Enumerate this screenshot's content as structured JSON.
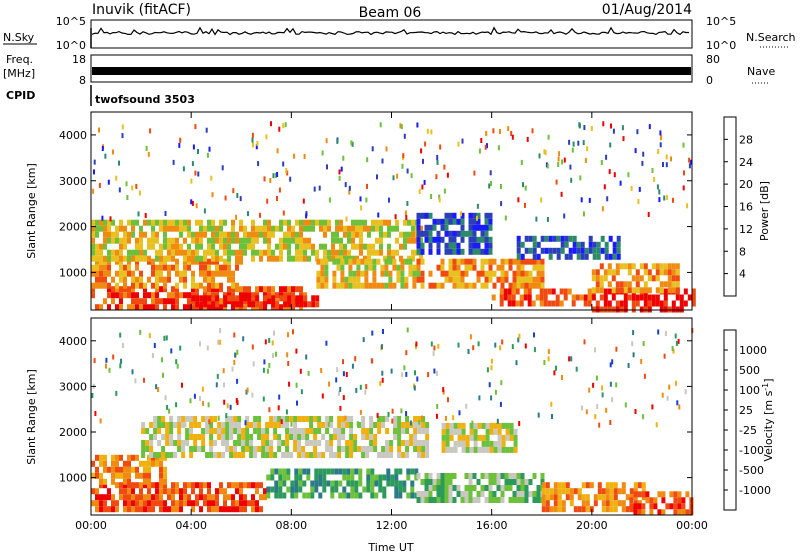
{
  "header": {
    "title": "Inuvik (fitACF)",
    "beam": "Beam 06",
    "date": "01/Aug/2014"
  },
  "noise_panel": {
    "left_label": "N.Sky",
    "left_ticks": [
      "10^5",
      "10^0"
    ],
    "right_ticks": [
      "10^5",
      "10^0"
    ],
    "right_label": "N.Search"
  },
  "freq_panel": {
    "left_label_1": "Freq.",
    "left_label_2": "[MHz]",
    "left_ticks": [
      "18",
      "8"
    ],
    "right_ticks": [
      "80",
      "0"
    ],
    "right_label": "Nave"
  },
  "cpid": {
    "label": "CPID",
    "value": "twofsound 3503"
  },
  "chart_data": [
    {
      "type": "heatmap",
      "name": "power",
      "ylabel": "Slant Range [km]",
      "yticks": [
        "1000",
        "2000",
        "3000",
        "4000"
      ],
      "ylim": [
        180,
        4500
      ],
      "xlim": [
        0,
        24
      ],
      "colorbar": {
        "label": "Power [dB]",
        "ticks": [
          "4",
          "8",
          "12",
          "16",
          "20",
          "24",
          "28"
        ],
        "colors": [
          "#1a1aff",
          "#2a3fb8",
          "#2c8a6a",
          "#6cc03a",
          "#e8c020",
          "#f08a10",
          "#f04a10",
          "#ee0000"
        ]
      },
      "bands": [
        {
          "t0": 0.0,
          "t1": 8.5,
          "r0": 300,
          "r1": 700,
          "level": 6
        },
        {
          "t0": 0.0,
          "t1": 6.0,
          "r0": 700,
          "r1": 1300,
          "level": 5
        },
        {
          "t0": 0.0,
          "t1": 13.2,
          "r0": 1300,
          "r1": 2150,
          "level": 4
        },
        {
          "t0": 4.0,
          "t1": 9.0,
          "r0": 250,
          "r1": 500,
          "level": 7
        },
        {
          "t0": 9.0,
          "t1": 13.0,
          "r0": 700,
          "r1": 1300,
          "level": 4
        },
        {
          "t0": 13.0,
          "t1": 18.0,
          "r0": 700,
          "r1": 1300,
          "level": 5
        },
        {
          "t0": 13.0,
          "t1": 16.0,
          "r0": 1500,
          "r1": 2300,
          "level": 1
        },
        {
          "t0": 16.0,
          "t1": 20.0,
          "r0": 350,
          "r1": 650,
          "level": 6
        },
        {
          "t0": 20.0,
          "t1": 24.0,
          "r0": 250,
          "r1": 650,
          "level": 7
        },
        {
          "t0": 20.0,
          "t1": 23.5,
          "r0": 650,
          "r1": 1200,
          "level": 5
        },
        {
          "t0": 17.0,
          "t1": 21.0,
          "r0": 1300,
          "r1": 1800,
          "level": 1
        }
      ]
    },
    {
      "type": "heatmap",
      "name": "velocity",
      "ylabel": "Slant Range [km]",
      "yticks": [
        "1000",
        "2000",
        "3000",
        "4000"
      ],
      "ylim": [
        180,
        4500
      ],
      "xlim": [
        0,
        24
      ],
      "xlabel": "Time UT",
      "xticks": [
        "00:00",
        "04:00",
        "08:00",
        "12:00",
        "16:00",
        "20:00",
        "00:00"
      ],
      "colorbar": {
        "label": "Velocity [m s^-1]",
        "ticks": [
          "1000",
          "500",
          "100",
          "25",
          "-25",
          "-100",
          "-500",
          "-1000"
        ],
        "colors": [
          "#1a3fcc",
          "#2a7a8a",
          "#2c9a5a",
          "#6cc03a",
          "#c8c8c0",
          "#f0b010",
          "#f08a10",
          "#f04a10",
          "#ee0000"
        ]
      },
      "bands": [
        {
          "t0": 0.0,
          "t1": 7.0,
          "r0": 300,
          "r1": 900,
          "level": 7
        },
        {
          "t0": 0.0,
          "t1": 3.0,
          "r0": 900,
          "r1": 1500,
          "level": 6
        },
        {
          "t0": 2.0,
          "t1": 13.5,
          "r0": 1500,
          "r1": 2350,
          "level": 4
        },
        {
          "t0": 7.0,
          "t1": 13.0,
          "r0": 600,
          "r1": 1200,
          "level": 2
        },
        {
          "t0": 13.0,
          "t1": 18.0,
          "r0": 500,
          "r1": 1100,
          "level": 3
        },
        {
          "t0": 18.0,
          "t1": 22.0,
          "r0": 350,
          "r1": 900,
          "level": 6
        },
        {
          "t0": 21.5,
          "t1": 24.0,
          "r0": 250,
          "r1": 700,
          "level": 7
        },
        {
          "t0": 14.0,
          "t1": 17.0,
          "r0": 1600,
          "r1": 2200,
          "level": 4
        }
      ]
    }
  ]
}
